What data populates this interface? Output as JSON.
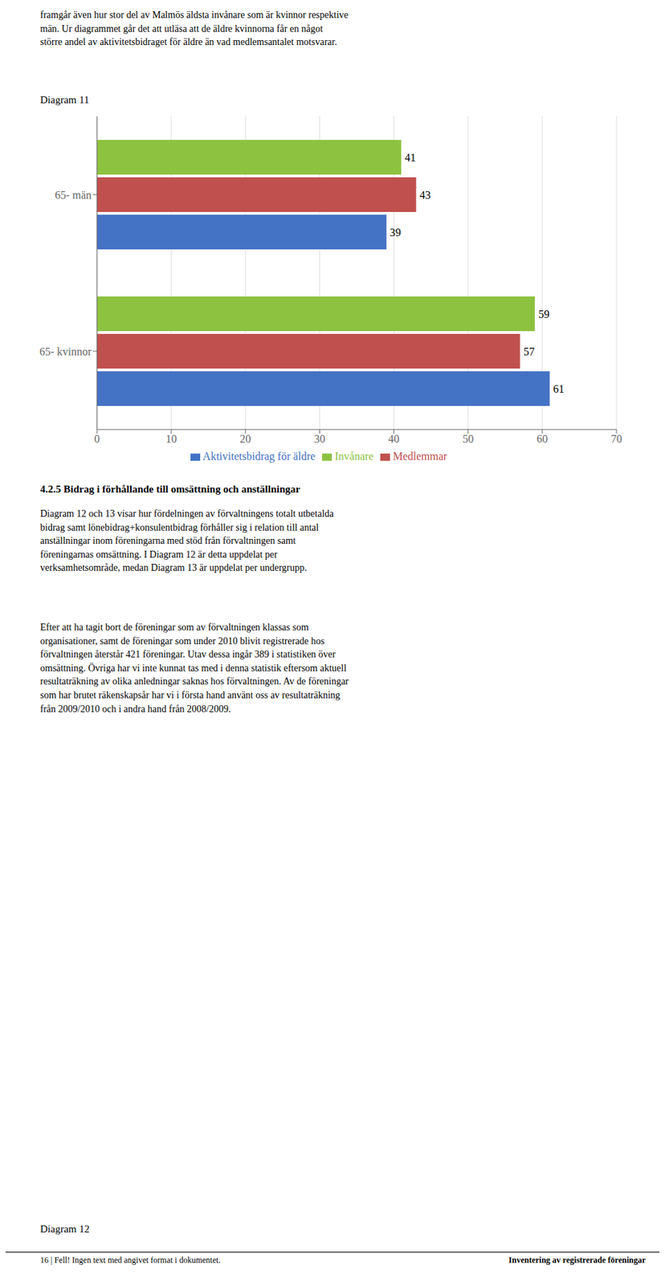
{
  "chart_data": {
    "type": "bar",
    "title": "Diagram 11",
    "orientation": "horizontal",
    "categories": [
      "65- män",
      "65- kvinnor"
    ],
    "series": [
      {
        "name": "Invånare",
        "color": "#8DC241",
        "values": [
          41,
          59
        ]
      },
      {
        "name": "Medlemmar",
        "color": "#C0504D",
        "values": [
          43,
          57
        ]
      },
      {
        "name": "Aktivitetsbidrag för äldre",
        "color": "#4472C4",
        "values": [
          39,
          61
        ]
      }
    ],
    "xlim": [
      0,
      70
    ],
    "xticks": [
      0,
      10,
      20,
      30,
      40,
      50,
      60,
      70
    ],
    "grid": true,
    "legend": "bottom",
    "data_labels": true,
    "annotations": [
      "framgår även hur stor del av Malmös äldsta invånare som är kvinnor respektive\nmän. Ur diagrammet går det att utläsa att de äldre kvinnorna får en något\nstörre andel av aktivitetsbidraget för äldre än vad medlemsantalet motsvarar.",
      "4.2.5 Bidrag i förhållande till omsättning och anställningar",
      "Diagram 12 och 13 visar hur fördelningen av förvaltningens totalt utbetalda\nbidrag samt lönebidrag+konsulentbidrag förhåller sig i relation till antal\nanställningar inom föreningarna med stöd från förvaltningen samt\nföreningarnas omsättning. I Diagram 12 är detta uppdelat per\nverksamhetsområde, medan Diagram 13 är uppdelat per undergrupp.",
      "Efter att ha tagit bort de föreningar som av förvaltningen klassas som\norganisationer, samt de föreningar som under 2010 blivit registrerade hos\nförvaltningen återstår 421 föreningar. Utav dessa ingår 389 i statistiken över\nomsättning. Övriga har vi inte kunnat tas med i denna statistik eftersom aktuell\nresultaträkning av olika anledningar saknas hos förvaltningen. Av de föreningar\nsom har brutet räkenskapsår har vi i första hand använt oss av resultaträkning\nfrån 2009/2010 och i andra hand från 2008/2009.",
      "Diagram 12",
      "16  |  Fell! Ingen text med angivet format i dokumentet.",
      "Inventering av registrerade föreningar"
    ]
  }
}
